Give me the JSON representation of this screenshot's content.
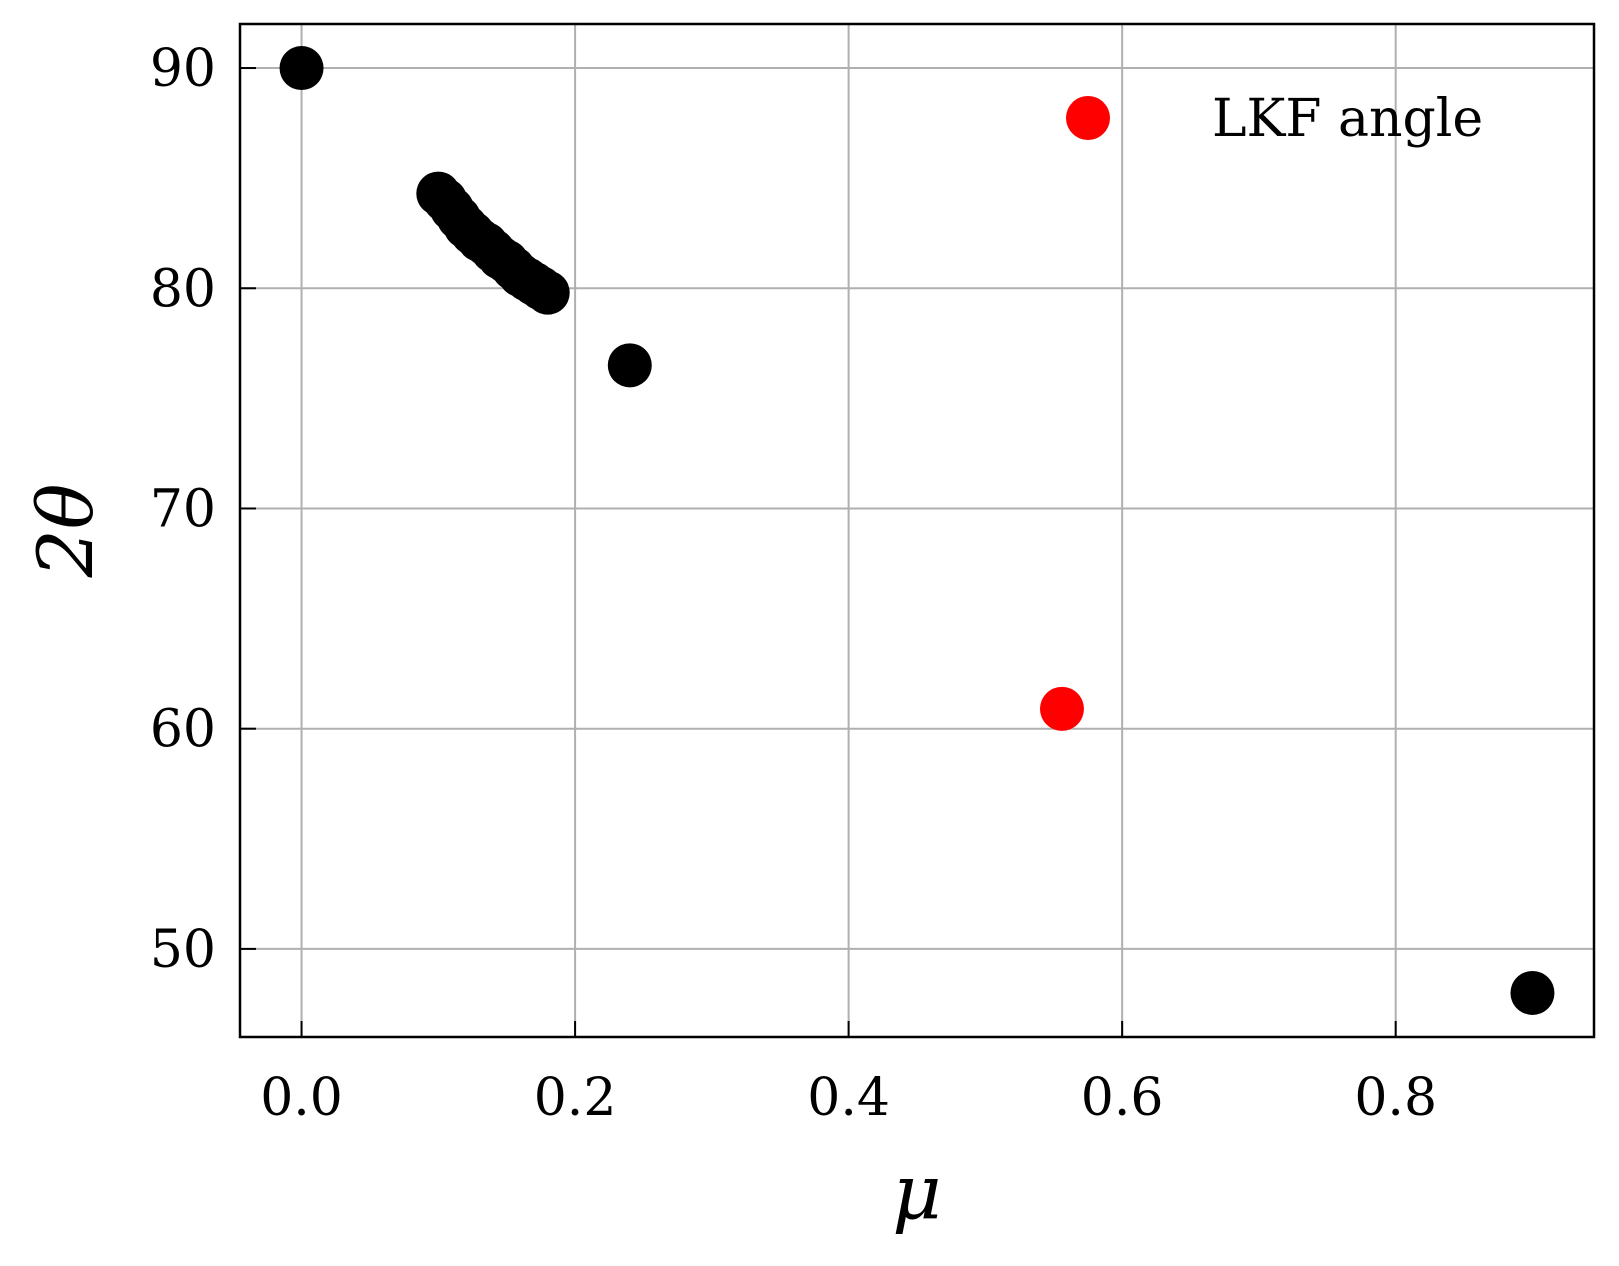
{
  "chart_data": {
    "type": "scatter",
    "title": "",
    "xlabel": "μ",
    "ylabel": "2θ",
    "xlim": [
      -0.045,
      0.945
    ],
    "ylim": [
      46,
      92
    ],
    "x_ticks": [
      0.0,
      0.2,
      0.4,
      0.6,
      0.8
    ],
    "x_tick_labels": [
      "0.0",
      "0.2",
      "0.4",
      "0.6",
      "0.8"
    ],
    "y_ticks": [
      50,
      60,
      70,
      80,
      90
    ],
    "y_tick_labels": [
      "50",
      "60",
      "70",
      "80",
      "90"
    ],
    "grid": true,
    "legend_placement": "top-right",
    "series": [
      {
        "color": "#000000",
        "points": [
          {
            "x": 0.0,
            "y": 90.0
          },
          {
            "x": 0.1,
            "y": 84.3
          },
          {
            "x": 0.105,
            "y": 84.0
          },
          {
            "x": 0.11,
            "y": 83.6
          },
          {
            "x": 0.115,
            "y": 83.2
          },
          {
            "x": 0.12,
            "y": 82.8
          },
          {
            "x": 0.125,
            "y": 82.5
          },
          {
            "x": 0.13,
            "y": 82.2
          },
          {
            "x": 0.135,
            "y": 82.0
          },
          {
            "x": 0.14,
            "y": 81.7
          },
          {
            "x": 0.145,
            "y": 81.4
          },
          {
            "x": 0.15,
            "y": 81.2
          },
          {
            "x": 0.155,
            "y": 80.9
          },
          {
            "x": 0.16,
            "y": 80.6
          },
          {
            "x": 0.165,
            "y": 80.4
          },
          {
            "x": 0.17,
            "y": 80.2
          },
          {
            "x": 0.175,
            "y": 80.0
          },
          {
            "x": 0.18,
            "y": 79.8
          },
          {
            "x": 0.24,
            "y": 76.5
          },
          {
            "x": 0.9,
            "y": 48.0
          }
        ]
      },
      {
        "name": "LKF angle",
        "color": "#ff0000",
        "points": [
          {
            "x": 0.556,
            "y": 60.9
          }
        ]
      }
    ]
  }
}
